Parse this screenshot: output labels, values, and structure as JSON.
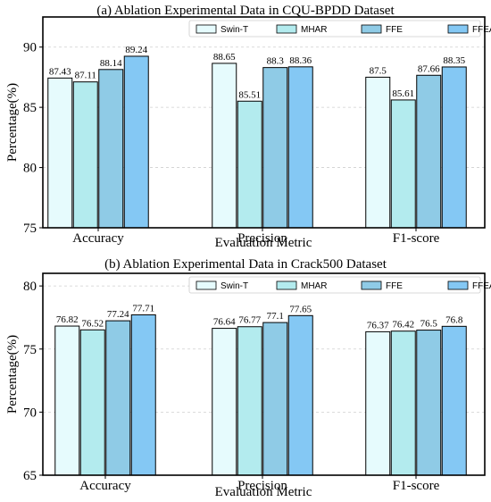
{
  "chart_data": [
    {
      "type": "bar",
      "title": "(a) Ablation Experimental Data in CQU-BPDD Dataset",
      "xlabel": "Evaluation Metric",
      "ylabel": "Percentage(%)",
      "categories": [
        "Accuracy",
        "Precision",
        "F1-score"
      ],
      "ylim": [
        75,
        92.5
      ],
      "yticks": [
        "75",
        "80",
        "85",
        "90"
      ],
      "grid": true,
      "legend": "top-right",
      "series": [
        {
          "name": "Swin-T",
          "values": [
            87.43,
            88.65,
            87.5
          ],
          "labels": [
            "87.43",
            "88.65",
            "87.5"
          ],
          "color": "#e6fbfd"
        },
        {
          "name": "MHAR",
          "values": [
            87.11,
            85.51,
            85.61
          ],
          "labels": [
            "87.11",
            "85.51",
            "85.61"
          ],
          "color": "#b3ebee"
        },
        {
          "name": "FFE",
          "values": [
            88.14,
            88.3,
            87.66
          ],
          "labels": [
            "88.14",
            "88.3",
            "87.66"
          ],
          "color": "#8fcbe6"
        },
        {
          "name": "FFEAR(ours)",
          "values": [
            89.24,
            88.36,
            88.35
          ],
          "labels": [
            "89.24",
            "88.36",
            "88.35"
          ],
          "color": "#84c8f4"
        }
      ]
    },
    {
      "type": "bar",
      "title": "(b) Ablation Experimental Data in Crack500 Dataset",
      "xlabel": "Evaluation Metric",
      "ylabel": "Percentage(%)",
      "categories": [
        "Accuracy",
        "Precision",
        "F1-score"
      ],
      "ylim": [
        65,
        81
      ],
      "yticks": [
        "65",
        "70",
        "75",
        "80"
      ],
      "grid": true,
      "legend": "top-right",
      "series": [
        {
          "name": "Swin-T",
          "values": [
            76.82,
            76.64,
            76.37
          ],
          "labels": [
            "76.82",
            "76.64",
            "76.37"
          ],
          "color": "#e6fbfd"
        },
        {
          "name": "MHAR",
          "values": [
            76.52,
            76.77,
            76.42
          ],
          "labels": [
            "76.52",
            "76.77",
            "76.42"
          ],
          "color": "#b3ebee"
        },
        {
          "name": "FFE",
          "values": [
            77.24,
            77.1,
            76.5
          ],
          "labels": [
            "77.24",
            "77.1",
            "76.5"
          ],
          "color": "#8fcbe6"
        },
        {
          "name": "FFEAR(ours)",
          "values": [
            77.71,
            77.65,
            76.8
          ],
          "labels": [
            "77.71",
            "77.65",
            "76.8"
          ],
          "color": "#84c8f4"
        }
      ]
    }
  ]
}
